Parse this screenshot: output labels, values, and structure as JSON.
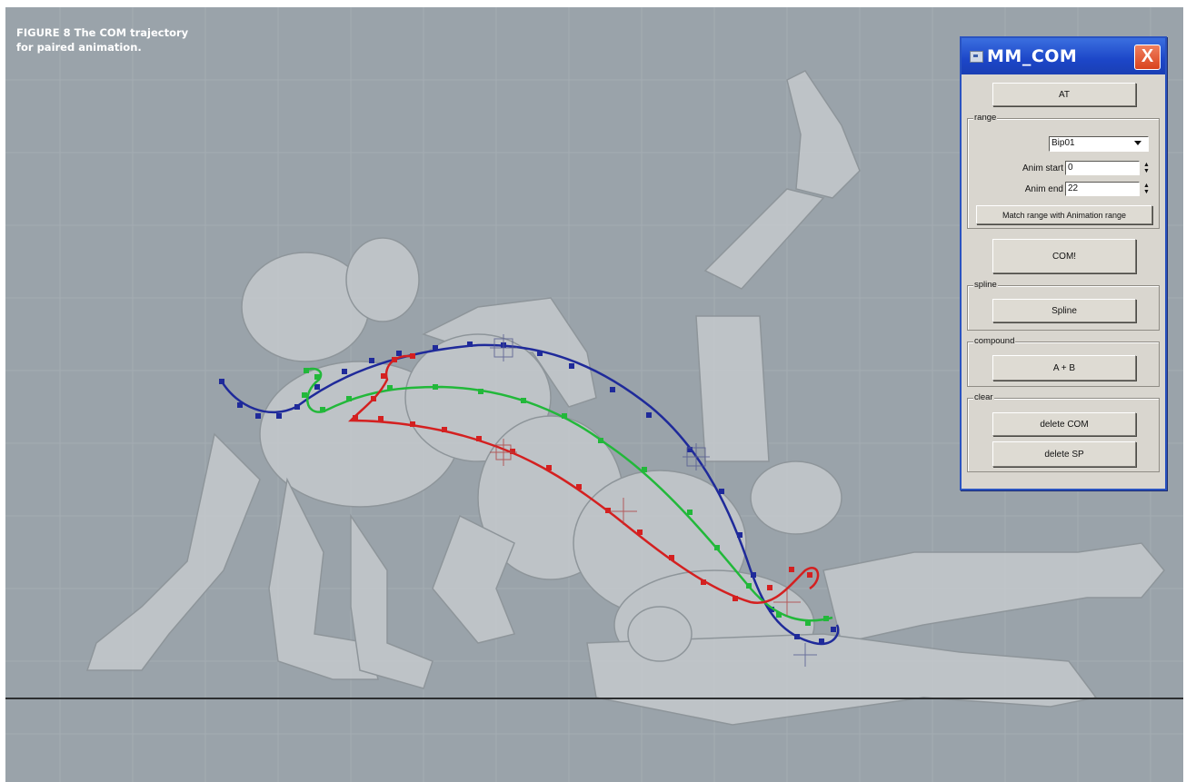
{
  "caption": {
    "line1": "FIGURE 8  The COM trajectory",
    "line2": "for paired animation."
  },
  "dialog": {
    "title": "MM_COM",
    "close_glyph": "X",
    "at_button": "AT",
    "range": {
      "label": "range",
      "node_select": "Bip01",
      "anim_start_label": "Anim start",
      "anim_start_value": "0",
      "anim_end_label": "Anim end",
      "anim_end_value": "22",
      "match_button": "Match range with Animation range"
    },
    "com_button": "COM!",
    "spline": {
      "label": "spline",
      "button": "Spline"
    },
    "compound": {
      "label": "compound",
      "button": "A + B"
    },
    "clear": {
      "label": "clear",
      "delete_com": "delete COM",
      "delete_sp": "delete SP"
    }
  },
  "colors": {
    "viewport_bg": "#9aa3aa",
    "titlebar": "#1c46c8",
    "blue_trajectory": "#1f2a9a",
    "green_trajectory": "#22b83a",
    "red_trajectory": "#d42020",
    "ground_line": "#2c2e30"
  },
  "icons": {
    "title_icon": "window-icon",
    "close": "close-icon",
    "dropdown": "chevron-down-icon",
    "spinner": "spinner-arrows-icon"
  }
}
